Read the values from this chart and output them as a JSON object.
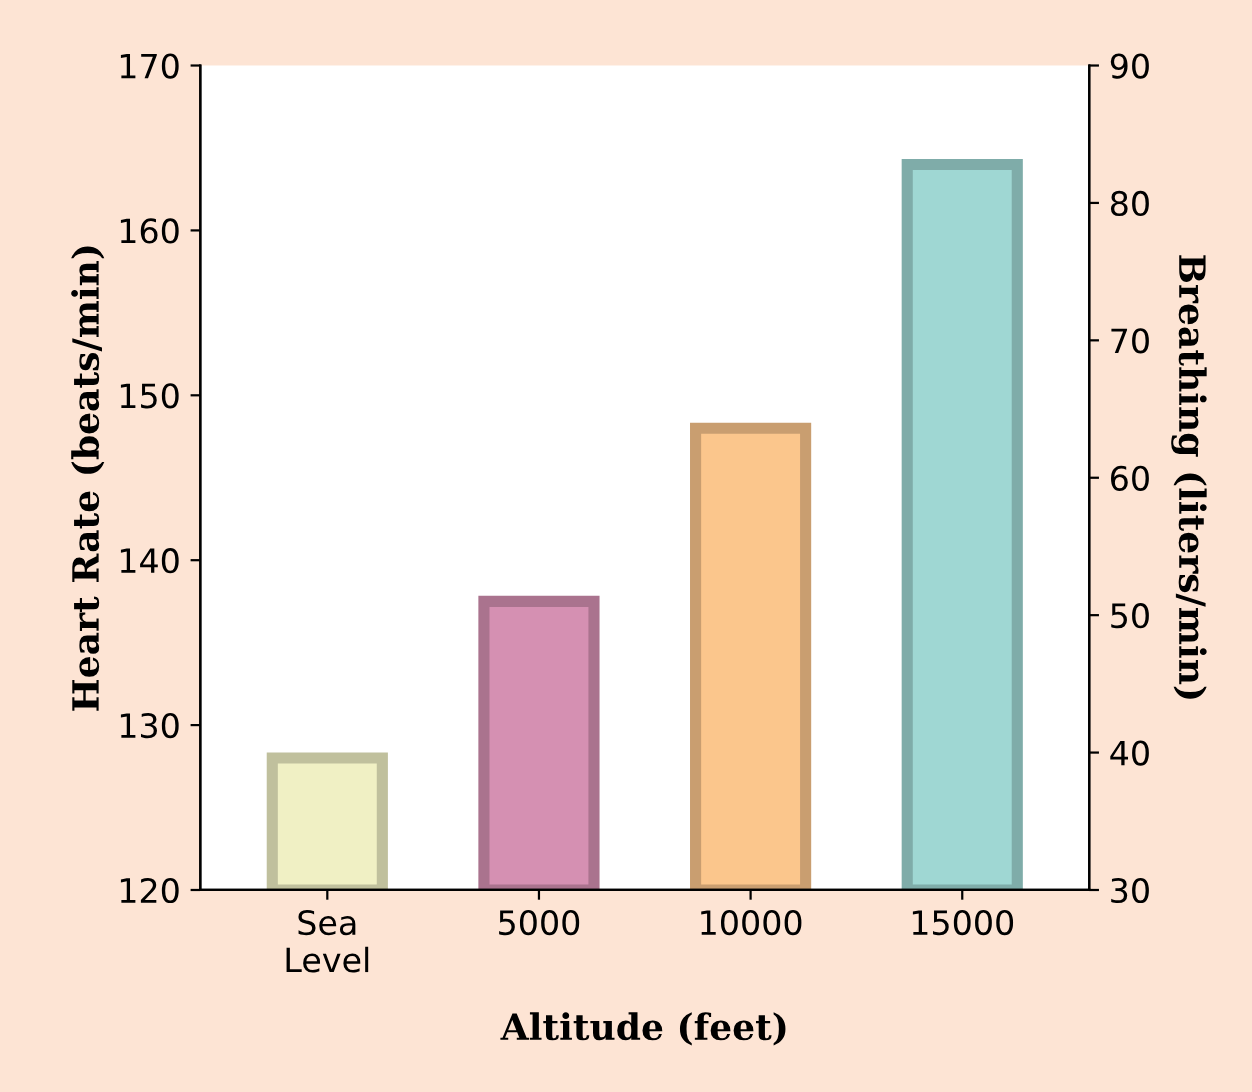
{
  "chart_data": {
    "type": "bar",
    "xlabel": "Altitude (feet)",
    "ylabel": "Heart Rate (beats/min)",
    "y2label": "Breathing (liters/min)",
    "categories": [
      "Sea\nLevel",
      "5000",
      "10000",
      "15000"
    ],
    "values": [
      128,
      137.5,
      148,
      164
    ],
    "colors": [
      "#f0f0c4",
      "#d590b2",
      "#fbc68c",
      "#9fd7d3"
    ],
    "ylim": [
      120,
      170
    ],
    "yticks": [
      120,
      130,
      140,
      150,
      160,
      170
    ],
    "y2lim": [
      30,
      90
    ],
    "y2ticks": [
      30,
      40,
      50,
      60,
      70,
      80,
      90
    ],
    "grid": false,
    "legend": false
  }
}
